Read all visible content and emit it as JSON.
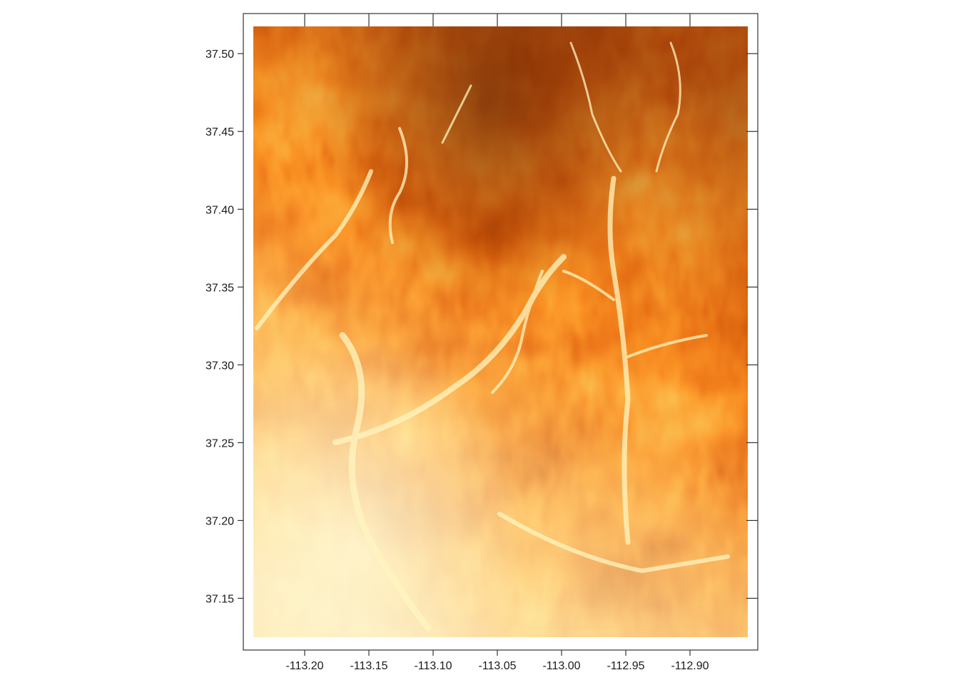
{
  "map": {
    "type": "raster-heatmap",
    "colormap": [
      "#fffec6",
      "#fee391",
      "#fec44f",
      "#fe9929",
      "#ec7014",
      "#cc4c02",
      "#993404",
      "#662506"
    ],
    "x_axis": {
      "ticks": [
        -113.2,
        -113.15,
        -113.1,
        -113.05,
        -113.0,
        -112.95,
        -112.9
      ],
      "tick_labels": [
        "-113.20",
        "-113.15",
        "-113.10",
        "-113.05",
        "-113.00",
        "-112.95",
        "-112.90"
      ],
      "range": [
        -113.24,
        -112.855
      ]
    },
    "y_axis": {
      "ticks": [
        37.15,
        37.2,
        37.25,
        37.3,
        37.35,
        37.4,
        37.45,
        37.5
      ],
      "tick_labels": [
        "37.15",
        "37.20",
        "37.25",
        "37.30",
        "37.35",
        "37.40",
        "37.45",
        "37.50"
      ],
      "range": [
        37.125,
        37.5175
      ]
    },
    "grid": false,
    "legend": "none"
  }
}
